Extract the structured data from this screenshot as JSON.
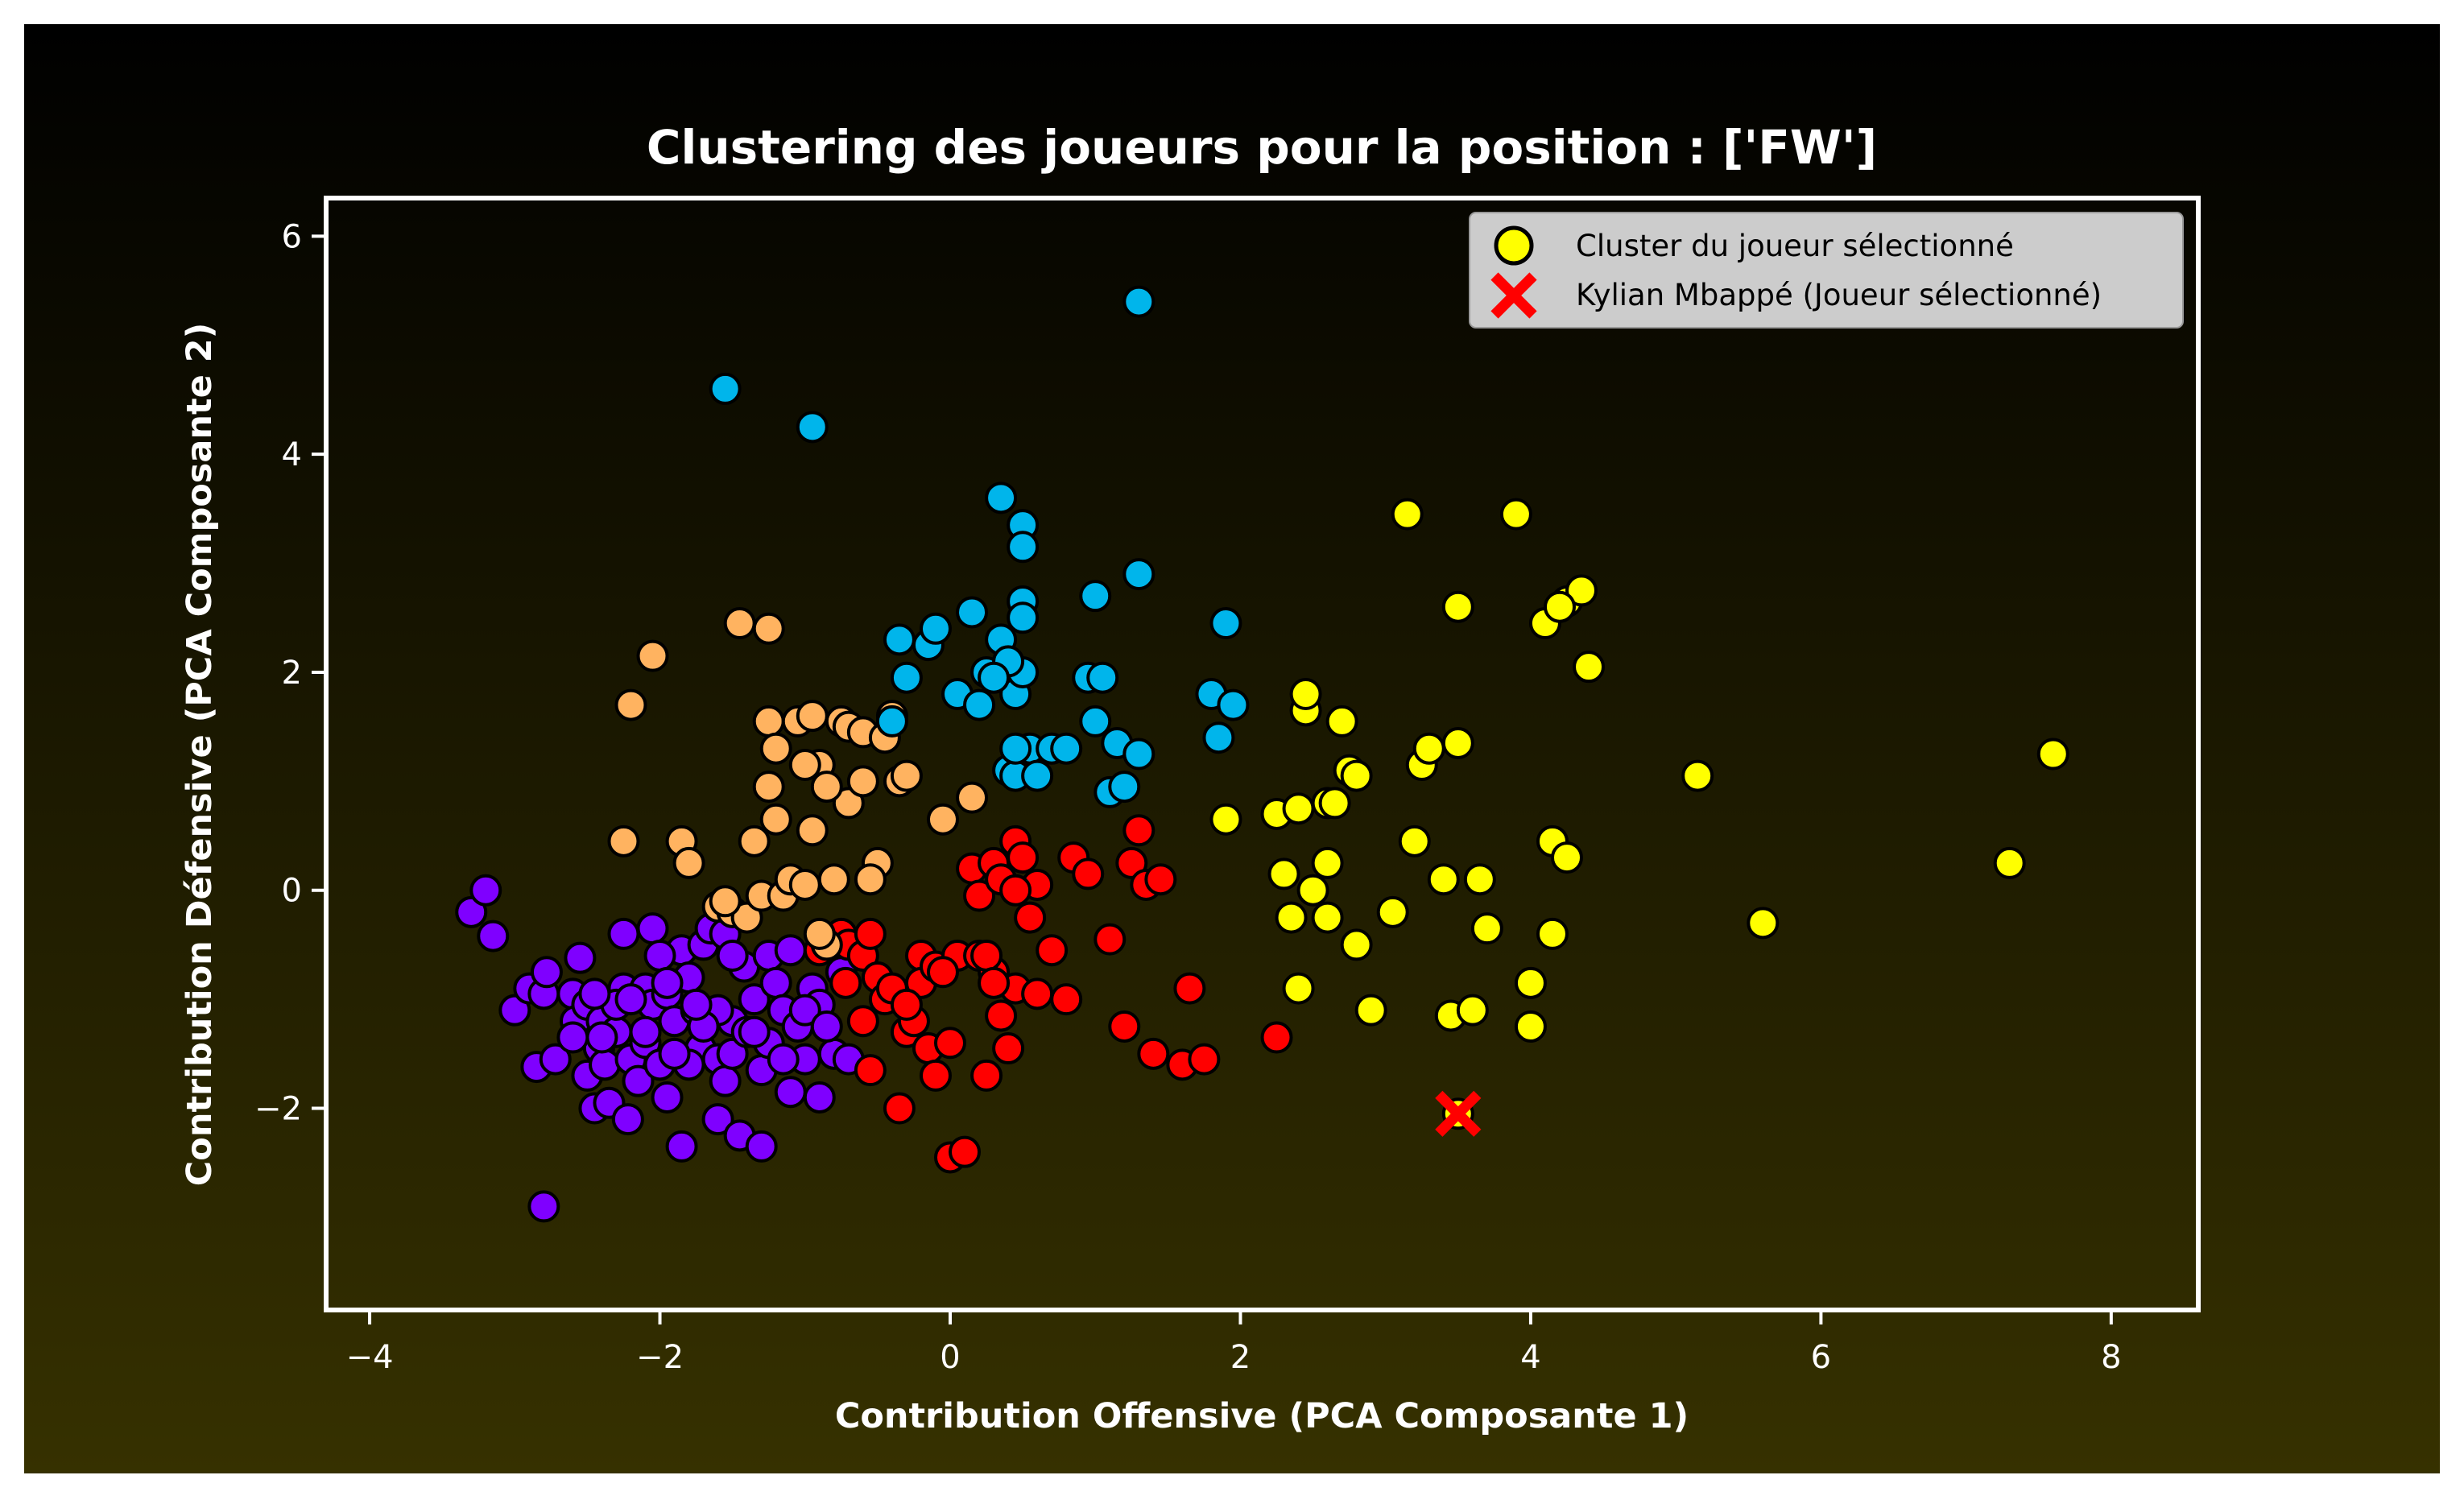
{
  "chart_data": {
    "type": "scatter",
    "title": "Clustering des joueurs pour la position : ['FW']",
    "xlabel": "Contribution Offensive (PCA Composante 1)",
    "ylabel": "Contribution Défensive (PCA Composante 2)",
    "xlim": [
      -4.3,
      8.6
    ],
    "ylim": [
      -3.85,
      6.35
    ],
    "x_ticks": [
      -4,
      -2,
      0,
      2,
      4,
      6,
      8
    ],
    "x_tick_labels": [
      "−4",
      "−2",
      "0",
      "2",
      "4",
      "6",
      "8"
    ],
    "y_ticks": [
      -2,
      0,
      2,
      4,
      6
    ],
    "y_tick_labels": [
      "−2",
      "0",
      "2",
      "4",
      "6"
    ],
    "grid": false,
    "legend_position": "top-right",
    "colors": {
      "background_top": "#000000",
      "background_bottom": "#363100",
      "text": "#ffffff",
      "axes_frame": "#ffffff",
      "marker_edge": "#000000",
      "legend_bg": "#cccccc"
    },
    "legend": [
      {
        "label": "Cluster du joueur sélectionné",
        "marker": "circle",
        "color": "#ffff00"
      },
      {
        "label": "Kylian Mbappé (Joueur sélectionné)",
        "marker": "x",
        "color": "#ff0000"
      }
    ],
    "series": [
      {
        "color": "#7f00ff",
        "points": [
          [
            -3.3,
            -0.2
          ],
          [
            -3.2,
            0.0
          ],
          [
            -3.15,
            -0.42
          ],
          [
            -3.0,
            -1.1
          ],
          [
            -2.9,
            -0.9
          ],
          [
            -2.85,
            -1.62
          ],
          [
            -2.8,
            -0.95
          ],
          [
            -2.78,
            -0.75
          ],
          [
            -2.72,
            -1.55
          ],
          [
            -2.8,
            -2.9
          ],
          [
            -2.6,
            -0.95
          ],
          [
            -2.58,
            -1.2
          ],
          [
            -2.55,
            -0.62
          ],
          [
            -2.5,
            -1.05
          ],
          [
            -2.5,
            -1.7
          ],
          [
            -2.45,
            -2.0
          ],
          [
            -2.42,
            -1.45
          ],
          [
            -2.4,
            -1.2
          ],
          [
            -2.38,
            -1.6
          ],
          [
            -2.35,
            -1.95
          ],
          [
            -2.3,
            -1.3
          ],
          [
            -2.25,
            -0.9
          ],
          [
            -2.25,
            -0.4
          ],
          [
            -2.2,
            -1.55
          ],
          [
            -2.22,
            -2.1
          ],
          [
            -2.15,
            -1.75
          ],
          [
            -2.1,
            -0.9
          ],
          [
            -2.1,
            -1.4
          ],
          [
            -2.05,
            -0.35
          ],
          [
            -2.05,
            -1.05
          ],
          [
            -2.0,
            -1.6
          ],
          [
            -1.95,
            -0.95
          ],
          [
            -1.95,
            -1.9
          ],
          [
            -1.9,
            -1.2
          ],
          [
            -1.85,
            -0.55
          ],
          [
            -1.85,
            -2.35
          ],
          [
            -1.8,
            -0.8
          ],
          [
            -1.75,
            -1.1
          ],
          [
            -1.72,
            -1.45
          ],
          [
            -1.7,
            -0.5
          ],
          [
            -1.65,
            -0.35
          ],
          [
            -1.6,
            -1.55
          ],
          [
            -1.6,
            -2.1
          ],
          [
            -1.55,
            -0.4
          ],
          [
            -1.55,
            -1.75
          ],
          [
            -1.5,
            -1.2
          ],
          [
            -1.5,
            -1.5
          ],
          [
            -1.45,
            -2.25
          ],
          [
            -1.42,
            -0.7
          ],
          [
            -1.4,
            -1.3
          ],
          [
            -1.35,
            -1.0
          ],
          [
            -1.3,
            -1.65
          ],
          [
            -1.3,
            -2.35
          ],
          [
            -1.25,
            -0.6
          ],
          [
            -1.2,
            -0.85
          ],
          [
            -1.15,
            -1.1
          ],
          [
            -1.1,
            -0.55
          ],
          [
            -1.1,
            -1.85
          ],
          [
            -1.05,
            -1.25
          ],
          [
            -1.0,
            -1.55
          ],
          [
            -0.95,
            -0.9
          ],
          [
            -0.9,
            -1.05
          ],
          [
            -0.9,
            -1.9
          ],
          [
            -0.88,
            -0.5
          ],
          [
            -0.8,
            -1.5
          ],
          [
            -0.75,
            -0.75
          ],
          [
            -0.7,
            -1.55
          ],
          [
            -2.1,
            -1.3
          ],
          [
            -1.8,
            -1.6
          ],
          [
            -1.6,
            -1.1
          ],
          [
            -2.3,
            -1.05
          ],
          [
            -1.25,
            -1.4
          ],
          [
            -1.0,
            -1.1
          ],
          [
            -0.85,
            -1.25
          ],
          [
            -1.7,
            -1.25
          ],
          [
            -2.45,
            -0.95
          ],
          [
            -2.0,
            -0.6
          ],
          [
            -1.5,
            -0.6
          ],
          [
            -2.6,
            -1.35
          ],
          [
            -1.9,
            -1.5
          ],
          [
            -1.35,
            -1.3
          ],
          [
            -1.15,
            -1.55
          ],
          [
            -2.2,
            -1.0
          ],
          [
            -1.95,
            -0.85
          ],
          [
            -1.75,
            -1.05
          ],
          [
            -2.4,
            -1.35
          ]
        ]
      },
      {
        "color": "#ff0000",
        "points": [
          [
            -0.9,
            -0.55
          ],
          [
            -0.75,
            -0.4
          ],
          [
            -0.72,
            -0.85
          ],
          [
            -0.7,
            -0.5
          ],
          [
            -0.6,
            -0.6
          ],
          [
            -0.6,
            -1.2
          ],
          [
            -0.55,
            -1.65
          ],
          [
            -0.55,
            -0.4
          ],
          [
            -0.5,
            -0.8
          ],
          [
            -0.45,
            -1.0
          ],
          [
            -0.4,
            -0.9
          ],
          [
            -0.35,
            -2.0
          ],
          [
            -0.3,
            -1.3
          ],
          [
            -0.25,
            -1.2
          ],
          [
            -0.2,
            -0.6
          ],
          [
            -0.2,
            -0.85
          ],
          [
            -0.15,
            -1.45
          ],
          [
            -0.1,
            -0.7
          ],
          [
            -0.1,
            -1.7
          ],
          [
            0.0,
            -2.45
          ],
          [
            0.0,
            -1.4
          ],
          [
            0.05,
            -0.6
          ],
          [
            0.1,
            -2.4
          ],
          [
            0.15,
            0.2
          ],
          [
            0.2,
            -0.6
          ],
          [
            0.2,
            -0.05
          ],
          [
            0.25,
            -1.7
          ],
          [
            0.3,
            -0.75
          ],
          [
            0.3,
            0.25
          ],
          [
            0.35,
            -1.15
          ],
          [
            0.35,
            0.1
          ],
          [
            0.4,
            -1.45
          ],
          [
            0.45,
            0.45
          ],
          [
            0.45,
            -0.9
          ],
          [
            0.5,
            0.3
          ],
          [
            0.55,
            -0.25
          ],
          [
            0.6,
            0.05
          ],
          [
            0.6,
            -0.95
          ],
          [
            0.7,
            -0.55
          ],
          [
            0.8,
            -1.0
          ],
          [
            0.85,
            0.3
          ],
          [
            0.95,
            0.15
          ],
          [
            1.1,
            -0.45
          ],
          [
            1.2,
            -1.25
          ],
          [
            1.25,
            0.25
          ],
          [
            1.3,
            0.55
          ],
          [
            1.35,
            0.05
          ],
          [
            1.4,
            -1.5
          ],
          [
            1.45,
            0.1
          ],
          [
            1.6,
            -1.6
          ],
          [
            1.65,
            -0.9
          ],
          [
            1.75,
            -1.55
          ],
          [
            2.25,
            -1.35
          ],
          [
            0.25,
            -0.6
          ],
          [
            -0.05,
            -0.75
          ],
          [
            0.3,
            -0.85
          ],
          [
            0.45,
            0.0
          ],
          [
            -0.3,
            -1.05
          ]
        ]
      },
      {
        "color": "#ffb360",
        "points": [
          [
            -2.25,
            0.45
          ],
          [
            -2.2,
            1.7
          ],
          [
            -2.05,
            2.15
          ],
          [
            -1.85,
            0.45
          ],
          [
            -1.8,
            0.25
          ],
          [
            -1.6,
            -0.15
          ],
          [
            -1.5,
            -0.2
          ],
          [
            -1.45,
            2.45
          ],
          [
            -1.4,
            -0.25
          ],
          [
            -1.35,
            0.45
          ],
          [
            -1.3,
            -0.05
          ],
          [
            -1.25,
            2.4
          ],
          [
            -1.25,
            1.55
          ],
          [
            -1.25,
            0.95
          ],
          [
            -1.2,
            1.3
          ],
          [
            -1.2,
            0.65
          ],
          [
            -1.15,
            -0.05
          ],
          [
            -1.1,
            0.1
          ],
          [
            -1.05,
            1.55
          ],
          [
            -1.0,
            0.05
          ],
          [
            -0.95,
            1.6
          ],
          [
            -0.95,
            0.55
          ],
          [
            -0.9,
            1.15
          ],
          [
            -0.85,
            -0.5
          ],
          [
            -0.8,
            0.1
          ],
          [
            -0.75,
            1.55
          ],
          [
            -0.7,
            1.5
          ],
          [
            -0.7,
            0.8
          ],
          [
            -0.6,
            1.45
          ],
          [
            -0.6,
            1.0
          ],
          [
            -0.5,
            0.25
          ],
          [
            -0.45,
            1.4
          ],
          [
            -0.4,
            1.6
          ],
          [
            -0.35,
            1.0
          ],
          [
            -0.3,
            1.05
          ],
          [
            -0.05,
            0.65
          ],
          [
            0.15,
            0.85
          ],
          [
            -1.55,
            -0.1
          ],
          [
            -0.85,
            0.95
          ],
          [
            -1.0,
            1.15
          ],
          [
            -0.55,
            0.1
          ],
          [
            -0.9,
            -0.4
          ]
        ]
      },
      {
        "color": "#00b5eb",
        "points": [
          [
            -1.55,
            4.6
          ],
          [
            -0.95,
            4.25
          ],
          [
            1.3,
            5.4
          ],
          [
            -0.35,
            2.3
          ],
          [
            -0.4,
            1.55
          ],
          [
            -0.3,
            1.95
          ],
          [
            -0.15,
            2.25
          ],
          [
            -0.1,
            2.4
          ],
          [
            0.05,
            1.8
          ],
          [
            0.15,
            2.55
          ],
          [
            0.2,
            1.7
          ],
          [
            0.25,
            2.0
          ],
          [
            0.35,
            3.6
          ],
          [
            0.35,
            2.3
          ],
          [
            0.4,
            1.1
          ],
          [
            0.45,
            1.8
          ],
          [
            0.45,
            1.05
          ],
          [
            0.5,
            3.35
          ],
          [
            0.5,
            3.15
          ],
          [
            0.5,
            2.65
          ],
          [
            0.5,
            2.5
          ],
          [
            0.5,
            2.0
          ],
          [
            0.55,
            1.3
          ],
          [
            0.6,
            1.05
          ],
          [
            0.7,
            1.3
          ],
          [
            0.8,
            1.3
          ],
          [
            0.95,
            1.95
          ],
          [
            1.0,
            2.7
          ],
          [
            1.0,
            1.55
          ],
          [
            1.05,
            1.95
          ],
          [
            1.1,
            0.9
          ],
          [
            1.15,
            1.35
          ],
          [
            1.2,
            0.95
          ],
          [
            1.3,
            1.25
          ],
          [
            1.3,
            2.9
          ],
          [
            1.8,
            1.8
          ],
          [
            1.85,
            1.4
          ],
          [
            1.9,
            2.45
          ],
          [
            1.95,
            1.7
          ],
          [
            0.4,
            2.1
          ],
          [
            0.3,
            1.95
          ],
          [
            0.45,
            1.3
          ]
        ]
      },
      {
        "color": "#ffff00",
        "points": [
          [
            1.9,
            0.65
          ],
          [
            2.25,
            0.7
          ],
          [
            2.3,
            0.15
          ],
          [
            2.35,
            -0.25
          ],
          [
            2.4,
            0.75
          ],
          [
            2.4,
            -0.9
          ],
          [
            2.45,
            1.65
          ],
          [
            2.45,
            1.8
          ],
          [
            2.5,
            0.0
          ],
          [
            2.6,
            -0.25
          ],
          [
            2.6,
            0.25
          ],
          [
            2.6,
            0.8
          ],
          [
            2.7,
            1.55
          ],
          [
            2.75,
            1.1
          ],
          [
            2.8,
            1.05
          ],
          [
            2.8,
            -0.5
          ],
          [
            2.9,
            -1.1
          ],
          [
            3.05,
            -0.2
          ],
          [
            3.15,
            3.45
          ],
          [
            3.2,
            0.45
          ],
          [
            3.25,
            1.15
          ],
          [
            3.3,
            1.3
          ],
          [
            3.4,
            0.1
          ],
          [
            3.45,
            -1.15
          ],
          [
            3.5,
            2.6
          ],
          [
            3.5,
            1.35
          ],
          [
            3.6,
            -1.1
          ],
          [
            3.65,
            0.1
          ],
          [
            3.7,
            -0.35
          ],
          [
            3.9,
            3.45
          ],
          [
            4.0,
            -0.85
          ],
          [
            4.0,
            -1.25
          ],
          [
            4.1,
            2.45
          ],
          [
            4.15,
            0.45
          ],
          [
            4.15,
            -0.4
          ],
          [
            4.25,
            2.65
          ],
          [
            4.25,
            0.3
          ],
          [
            4.35,
            2.75
          ],
          [
            4.4,
            2.05
          ],
          [
            5.15,
            1.05
          ],
          [
            5.6,
            -0.3
          ],
          [
            7.3,
            0.25
          ],
          [
            7.6,
            1.25
          ],
          [
            3.5,
            -2.05
          ],
          [
            2.65,
            0.8
          ],
          [
            4.2,
            2.6
          ]
        ]
      }
    ],
    "selected_player": {
      "x": 3.5,
      "y": -2.05
    }
  }
}
